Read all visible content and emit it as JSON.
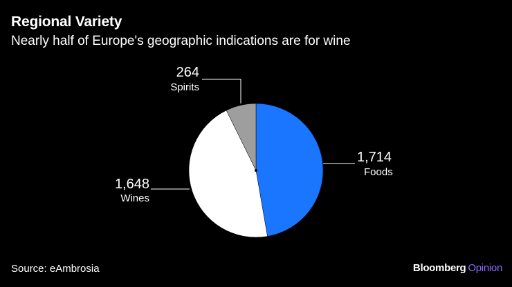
{
  "header": {
    "title": "Regional Variety",
    "subtitle": "Nearly half of Europe's geographic indications are for wine"
  },
  "footer": {
    "source": "Source: eAmbrosia",
    "brand_main": "Bloomberg",
    "brand_accent": "Opinion"
  },
  "colors": {
    "Foods": "#1a75ff",
    "Wines": "#ffffff",
    "Spirits": "#9e9e9e",
    "background": "#000000",
    "brand_accent": "#8a6cff"
  },
  "chart_data": {
    "type": "pie",
    "variant": "donut",
    "title": "Regional Variety",
    "subtitle": "Nearly half of Europe's geographic indications are for wine",
    "slices": [
      {
        "label": "Foods",
        "value": 1714,
        "display": "1,714"
      },
      {
        "label": "Wines",
        "value": 1648,
        "display": "1,648"
      },
      {
        "label": "Spirits",
        "value": 264,
        "display": "264"
      }
    ],
    "start": "12 o'clock",
    "direction": "clockwise",
    "legend": "none"
  }
}
